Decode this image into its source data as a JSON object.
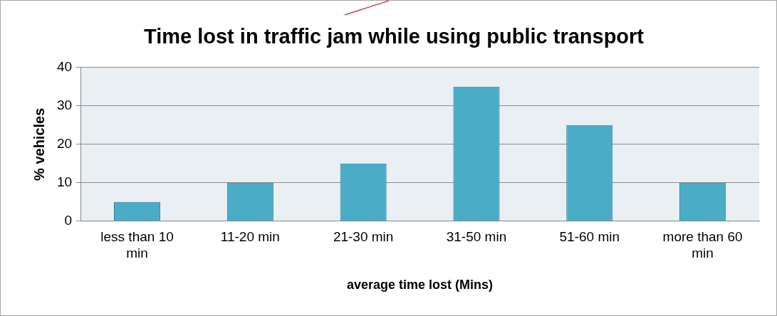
{
  "chart_data": {
    "type": "bar",
    "title": "Time lost in traffic jam while using public transport",
    "xlabel": "average time lost (Mins)",
    "ylabel": "% vehicles",
    "categories": [
      "less than 10 min",
      "11-20 min",
      "21-30 min",
      "31-50 min",
      "51-60 min",
      "more than 60 min"
    ],
    "values": [
      5,
      10,
      15,
      35,
      25,
      10
    ],
    "color": "#4bacc6",
    "ylim": [
      0,
      40
    ],
    "yticks": [
      0,
      10,
      20,
      30,
      40
    ],
    "grid": "y",
    "legend": false
  }
}
